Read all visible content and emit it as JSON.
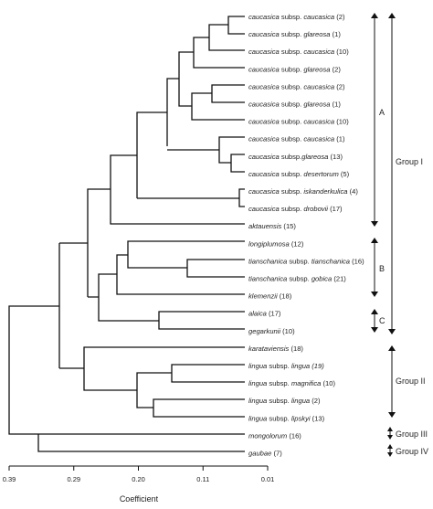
{
  "leaves": [
    {
      "parts": [
        {
          "t": "caucasica",
          "i": true
        },
        {
          "t": " subsp. ",
          "i": false
        },
        {
          "t": "caucasica",
          "i": true
        },
        {
          "t": " (2)",
          "i": false
        }
      ]
    },
    {
      "parts": [
        {
          "t": "caucasica",
          "i": true
        },
        {
          "t": " subsp. ",
          "i": false
        },
        {
          "t": "glareosa",
          "i": true
        },
        {
          "t": " (1)",
          "i": false
        }
      ]
    },
    {
      "parts": [
        {
          "t": "caucasica",
          "i": true
        },
        {
          "t": " subsp. ",
          "i": false
        },
        {
          "t": "caucasica",
          "i": true
        },
        {
          "t": " (10)",
          "i": false
        }
      ]
    },
    {
      "parts": [
        {
          "t": "caucasica",
          "i": true
        },
        {
          "t": " subsp. ",
          "i": false
        },
        {
          "t": "glareosa",
          "i": true
        },
        {
          "t": " (2)",
          "i": false
        }
      ]
    },
    {
      "parts": [
        {
          "t": "caucasica",
          "i": true
        },
        {
          "t": " subsp. ",
          "i": false
        },
        {
          "t": "caucasica",
          "i": true
        },
        {
          "t": " (2)",
          "i": false
        }
      ]
    },
    {
      "parts": [
        {
          "t": "caucasica",
          "i": true
        },
        {
          "t": " subsp. ",
          "i": false
        },
        {
          "t": "glareosa",
          "i": true
        },
        {
          "t": " (1)",
          "i": false
        }
      ]
    },
    {
      "parts": [
        {
          "t": "caucasica",
          "i": true
        },
        {
          "t": " subsp. ",
          "i": false
        },
        {
          "t": "caucasica",
          "i": true
        },
        {
          "t": " (10)",
          "i": false
        }
      ]
    },
    {
      "parts": [
        {
          "t": "caucasica",
          "i": true
        },
        {
          "t": " subsp. ",
          "i": false
        },
        {
          "t": "caucasica",
          "i": true
        },
        {
          "t": " (1)",
          "i": false
        }
      ]
    },
    {
      "parts": [
        {
          "t": "caucasica",
          "i": true
        },
        {
          "t": " subsp.",
          "i": false
        },
        {
          "t": "glareosa",
          "i": true
        },
        {
          "t": " (13)",
          "i": false
        }
      ]
    },
    {
      "parts": [
        {
          "t": "caucasica",
          "i": true
        },
        {
          "t": " subsp. ",
          "i": false
        },
        {
          "t": "desertorum",
          "i": true
        },
        {
          "t": " (5)",
          "i": false
        }
      ]
    },
    {
      "parts": [
        {
          "t": "caucasica",
          "i": true
        },
        {
          "t": " subsp. ",
          "i": false
        },
        {
          "t": "iskanderkulica",
          "i": true
        },
        {
          "t": " (4)",
          "i": false
        }
      ]
    },
    {
      "parts": [
        {
          "t": "caucasica",
          "i": true
        },
        {
          "t": " subsp. ",
          "i": false
        },
        {
          "t": "drobovii",
          "i": true
        },
        {
          "t": " (17)",
          "i": false
        }
      ]
    },
    {
      "parts": [
        {
          "t": "aktauensis",
          "i": true
        },
        {
          "t": " (15)",
          "i": false
        }
      ]
    },
    {
      "parts": [
        {
          "t": "longiplumosa",
          "i": true
        },
        {
          "t": " (12)",
          "i": false
        }
      ]
    },
    {
      "parts": [
        {
          "t": "tianschanica",
          "i": true
        },
        {
          "t": " subsp. ",
          "i": false
        },
        {
          "t": "tianschanica",
          "i": true
        },
        {
          "t": " (16)",
          "i": false
        }
      ]
    },
    {
      "parts": [
        {
          "t": "tianschanica",
          "i": true
        },
        {
          "t": " subsp. ",
          "i": false
        },
        {
          "t": "gobica",
          "i": true
        },
        {
          "t": " (21)",
          "i": false
        }
      ]
    },
    {
      "parts": [
        {
          "t": "klemenzii",
          "i": true
        },
        {
          "t": " (18)",
          "i": false
        }
      ]
    },
    {
      "parts": [
        {
          "t": "alaica",
          "i": true
        },
        {
          "t": " (17)",
          "i": false
        }
      ]
    },
    {
      "parts": [
        {
          "t": "gegarkunii",
          "i": true
        },
        {
          "t": " (10)",
          "i": false
        }
      ]
    },
    {
      "parts": [
        {
          "t": "karataviensis",
          "i": true
        },
        {
          "t": " (18)",
          "i": false
        }
      ]
    },
    {
      "parts": [
        {
          "t": "lingua",
          "i": true
        },
        {
          "t": " subsp. ",
          "i": false
        },
        {
          "t": "lingua (19)",
          "i": true
        }
      ]
    },
    {
      "parts": [
        {
          "t": "lingua",
          "i": true
        },
        {
          "t": " subsp. ",
          "i": false
        },
        {
          "t": "magnifica",
          "i": true
        },
        {
          "t": " (10)",
          "i": false
        }
      ]
    },
    {
      "parts": [
        {
          "t": "lingua",
          "i": true
        },
        {
          "t": " subsp. ",
          "i": false
        },
        {
          "t": "lingua",
          "i": true
        },
        {
          "t": " (2)",
          "i": false
        }
      ]
    },
    {
      "parts": [
        {
          "t": "lingua",
          "i": true
        },
        {
          "t": " subsp. ",
          "i": false
        },
        {
          "t": "lipskyi",
          "i": true
        },
        {
          "t": " (13)",
          "i": false
        }
      ]
    },
    {
      "parts": [
        {
          "t": "mongolorum",
          "i": true
        },
        {
          "t": " (16)",
          "i": false
        }
      ]
    },
    {
      "parts": [
        {
          "t": "gaubae",
          "i": true
        },
        {
          "t": " (7)",
          "i": false
        }
      ]
    }
  ],
  "subgroups": [
    "A",
    "B",
    "C"
  ],
  "groups": [
    "Group I",
    "Group II",
    "Group III",
    "Group IV"
  ],
  "axis": {
    "label": "Coefficient",
    "ticks": [
      "0.39",
      "0.29",
      "0.20",
      "0.11",
      "0.01"
    ]
  }
}
